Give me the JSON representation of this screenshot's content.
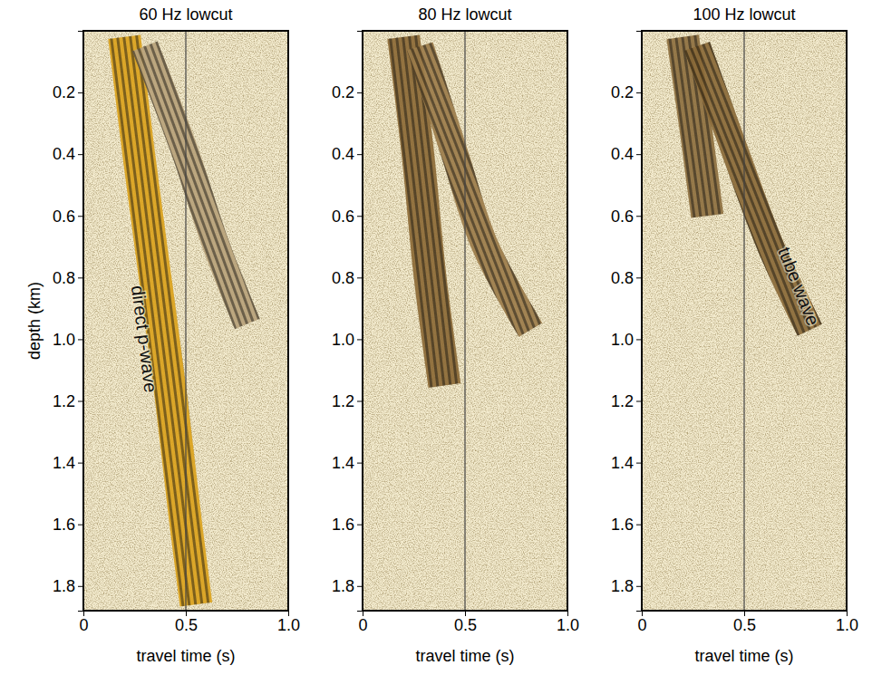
{
  "chart_data": [
    {
      "type": "line",
      "title": "60 Hz lowcut",
      "x_label": "travel time (s)",
      "y_label": "depth (km)",
      "xlim": [
        0,
        1
      ],
      "ylim": [
        0,
        1.88
      ],
      "xticks": [
        0,
        0.5,
        {
          "value": 1,
          "label": "1.0"
        }
      ],
      "yticks": [
        0.2,
        0.4,
        0.6,
        0.8,
        {
          "value": 1,
          "label": "1.0"
        },
        1.2,
        1.4,
        1.6,
        1.8
      ],
      "vline": 0.5,
      "series": [
        {
          "x": [
            0.2,
            0.27,
            0.35,
            0.43,
            0.5,
            0.55
          ],
          "values": [
            0.02,
            0.4,
            0.8,
            1.2,
            1.6,
            1.86
          ],
          "color": "#dba21c"
        },
        {
          "x": [
            0.3,
            0.5,
            0.65,
            0.8
          ],
          "values": [
            0.05,
            0.4,
            0.7,
            0.95
          ],
          "color": "#b8a27a"
        }
      ],
      "annotations": [
        {
          "text": "direct p-wave",
          "x": 0.29,
          "y": 1.0
        }
      ]
    },
    {
      "type": "line",
      "title": "80 Hz lowcut",
      "x_label": "travel time (s)",
      "xlim": [
        0,
        1
      ],
      "ylim": [
        0,
        1.88
      ],
      "xticks": [
        0,
        0.5,
        {
          "value": 1,
          "label": "1.0"
        }
      ],
      "yticks": [
        0.2,
        0.4,
        0.6,
        0.8,
        {
          "value": 1,
          "label": "1.0"
        },
        1.2,
        1.4,
        1.6,
        1.8
      ],
      "vline": 0.5,
      "series": [
        {
          "x": [
            0.2,
            0.27,
            0.33,
            0.4
          ],
          "values": [
            0.02,
            0.4,
            0.8,
            1.15
          ],
          "color": "#8c6a36"
        },
        {
          "x": [
            0.28,
            0.45,
            0.6,
            0.82
          ],
          "values": [
            0.05,
            0.4,
            0.7,
            0.97
          ],
          "color": "#9c7c4a"
        }
      ]
    },
    {
      "type": "line",
      "title": "100 Hz lowcut",
      "x_label": "travel time (s)",
      "xlim": [
        0,
        1
      ],
      "ylim": [
        0,
        1.88
      ],
      "xticks": [
        0,
        0.5,
        {
          "value": 1,
          "label": "1.0"
        }
      ],
      "yticks": [
        0.2,
        0.4,
        0.6,
        0.8,
        {
          "value": 1,
          "label": "1.0"
        },
        1.2,
        1.4,
        1.6,
        1.8
      ],
      "vline": 0.5,
      "series": [
        {
          "x": [
            0.2,
            0.26,
            0.32
          ],
          "values": [
            0.02,
            0.3,
            0.6
          ],
          "color": "#8e7040"
        },
        {
          "x": [
            0.27,
            0.46,
            0.63,
            0.82
          ],
          "values": [
            0.05,
            0.4,
            0.7,
            0.97
          ],
          "color": "#8a6a38"
        }
      ],
      "annotations": [
        {
          "text": "tube wave",
          "x": 0.76,
          "y": 0.83
        }
      ]
    }
  ]
}
